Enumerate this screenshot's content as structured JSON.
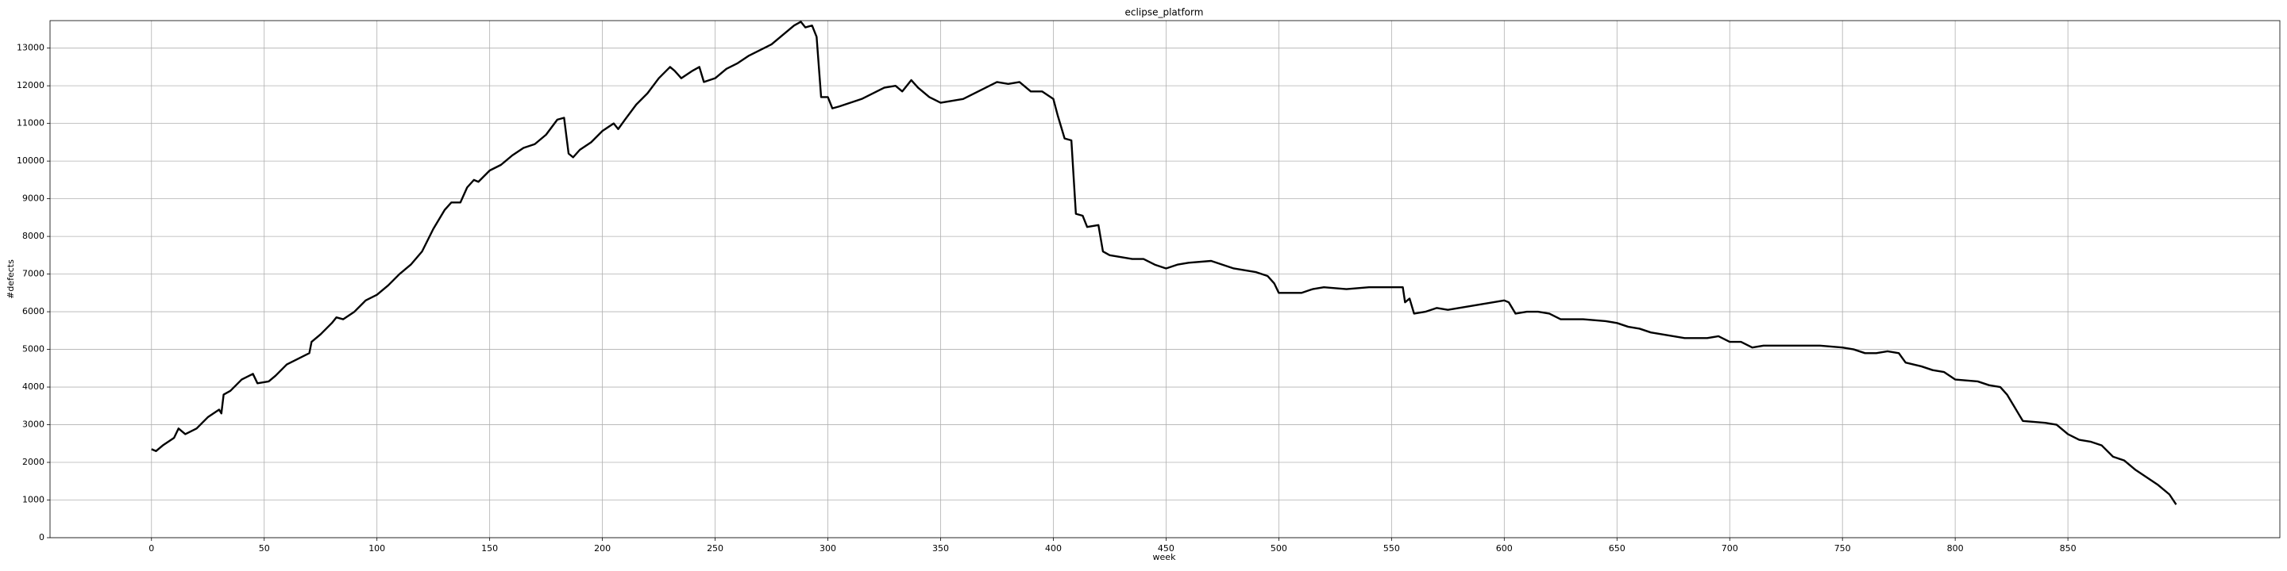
{
  "chart_data": {
    "type": "line",
    "title": "eclipse_platform",
    "x_label": "week",
    "y_label": "#defects",
    "x": [
      0,
      2,
      5,
      10,
      12,
      15,
      20,
      25,
      30,
      31,
      32,
      35,
      40,
      45,
      47,
      52,
      55,
      60,
      65,
      70,
      71,
      75,
      80,
      82,
      85,
      90,
      95,
      100,
      105,
      110,
      115,
      120,
      125,
      130,
      133,
      137,
      140,
      143,
      145,
      150,
      155,
      160,
      165,
      170,
      175,
      180,
      183,
      185,
      187,
      190,
      195,
      200,
      205,
      207,
      210,
      215,
      220,
      225,
      230,
      232,
      235,
      240,
      243,
      245,
      250,
      255,
      260,
      265,
      270,
      275,
      280,
      285,
      288,
      290,
      293,
      295,
      297,
      300,
      302,
      305,
      310,
      315,
      320,
      325,
      330,
      333,
      337,
      340,
      345,
      350,
      355,
      360,
      365,
      370,
      375,
      380,
      385,
      390,
      395,
      400,
      402,
      405,
      408,
      410,
      413,
      415,
      420,
      422,
      425,
      430,
      435,
      440,
      445,
      450,
      455,
      460,
      470,
      475,
      480,
      485,
      490,
      495,
      498,
      500,
      505,
      510,
      515,
      520,
      530,
      540,
      550,
      555,
      556,
      558,
      560,
      565,
      570,
      575,
      580,
      590,
      600,
      602,
      605,
      610,
      615,
      620,
      625,
      635,
      645,
      650,
      655,
      660,
      665,
      670,
      680,
      690,
      695,
      700,
      705,
      710,
      715,
      720,
      730,
      740,
      750,
      755,
      760,
      765,
      770,
      775,
      778,
      785,
      790,
      795,
      800,
      810,
      815,
      820,
      823,
      826,
      830,
      840,
      845,
      850,
      855,
      860,
      865,
      870,
      875,
      880,
      885,
      890,
      895,
      898
    ],
    "series": [
      {
        "name": "eclipse_platform",
        "color": "#000000",
        "values": [
          2350,
          2300,
          2450,
          2650,
          2900,
          2750,
          2900,
          3200,
          3400,
          3300,
          3800,
          3900,
          4200,
          4350,
          4100,
          4150,
          4300,
          4600,
          4750,
          4900,
          5200,
          5400,
          5700,
          5850,
          5800,
          6000,
          6300,
          6450,
          6700,
          7000,
          7250,
          7600,
          8200,
          8700,
          8900,
          8900,
          9300,
          9500,
          9450,
          9750,
          9900,
          10150,
          10350,
          10450,
          10700,
          11100,
          11150,
          10200,
          10100,
          10300,
          10500,
          10800,
          11000,
          10850,
          11100,
          11500,
          11800,
          12200,
          12500,
          12400,
          12200,
          12400,
          12500,
          12100,
          12200,
          12450,
          12600,
          12800,
          12950,
          13100,
          13350,
          13600,
          13700,
          13550,
          13600,
          13300,
          11700,
          11700,
          11400,
          11450,
          11550,
          11650,
          11800,
          11950,
          12000,
          11850,
          12150,
          11950,
          11700,
          11550,
          11600,
          11650,
          11800,
          11950,
          12100,
          12050,
          12100,
          11850,
          11850,
          11650,
          11200,
          10600,
          10550,
          8600,
          8550,
          8250,
          8300,
          7600,
          7500,
          7450,
          7400,
          7400,
          7250,
          7150,
          7250,
          7300,
          7350,
          7250,
          7150,
          7100,
          7050,
          6950,
          6750,
          6500,
          6500,
          6500,
          6600,
          6650,
          6600,
          6650,
          6650,
          6650,
          6250,
          6350,
          5950,
          6000,
          6100,
          6050,
          6100,
          6200,
          6300,
          6250,
          5950,
          6000,
          6000,
          5950,
          5800,
          5800,
          5750,
          5700,
          5600,
          5550,
          5450,
          5400,
          5300,
          5300,
          5350,
          5200,
          5200,
          5050,
          5100,
          5100,
          5100,
          5100,
          5050,
          5000,
          4900,
          4900,
          4950,
          4900,
          4650,
          4550,
          4450,
          4400,
          4200,
          4150,
          4050,
          4000,
          3800,
          3500,
          3100,
          3050,
          3000,
          2750,
          2600,
          2550,
          2450,
          2150,
          2050,
          1800,
          1600,
          1400,
          1150,
          880
        ]
      }
    ],
    "xlim": [
      -45,
      944
    ],
    "ylim": [
      0,
      13730
    ],
    "xticks": [
      0,
      50,
      100,
      150,
      200,
      250,
      300,
      350,
      400,
      450,
      500,
      550,
      600,
      650,
      700,
      750,
      800,
      850
    ],
    "yticks": [
      0,
      1000,
      2000,
      3000,
      4000,
      5000,
      6000,
      7000,
      8000,
      9000,
      10000,
      11000,
      12000,
      13000
    ],
    "grid": true
  }
}
